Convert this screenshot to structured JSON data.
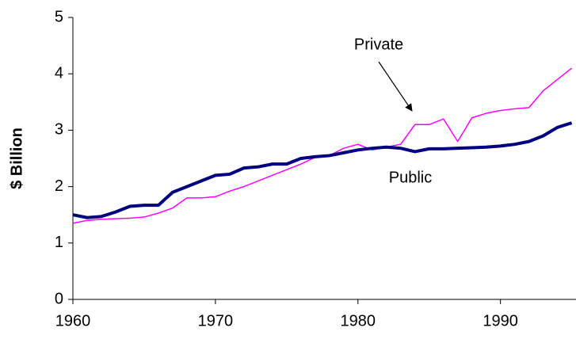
{
  "chart_data": {
    "type": "line",
    "y_label": "$ Billion",
    "x": [
      1960,
      1961,
      1962,
      1963,
      1964,
      1965,
      1966,
      1967,
      1968,
      1969,
      1970,
      1971,
      1972,
      1973,
      1974,
      1975,
      1976,
      1977,
      1978,
      1979,
      1980,
      1981,
      1982,
      1983,
      1984,
      1985,
      1986,
      1987,
      1988,
      1989,
      1990,
      1991,
      1992,
      1993,
      1994,
      1995
    ],
    "series": [
      {
        "name": "Private",
        "color": "#ff00ff",
        "values": [
          1.35,
          1.4,
          1.42,
          1.43,
          1.44,
          1.46,
          1.53,
          1.62,
          1.8,
          1.8,
          1.82,
          1.92,
          2.0,
          2.1,
          2.2,
          2.3,
          2.4,
          2.52,
          2.55,
          2.68,
          2.75,
          2.65,
          2.7,
          2.75,
          3.1,
          3.1,
          3.2,
          2.8,
          3.22,
          3.3,
          3.35,
          3.38,
          3.4,
          3.7,
          3.9,
          4.1
        ]
      },
      {
        "name": "Public",
        "color": "#000080",
        "values": [
          1.5,
          1.45,
          1.47,
          1.55,
          1.65,
          1.67,
          1.67,
          1.9,
          2.0,
          2.1,
          2.2,
          2.22,
          2.33,
          2.35,
          2.4,
          2.4,
          2.5,
          2.53,
          2.55,
          2.6,
          2.65,
          2.68,
          2.7,
          2.68,
          2.62,
          2.67,
          2.67,
          2.68,
          2.69,
          2.7,
          2.72,
          2.75,
          2.8,
          2.9,
          3.05,
          3.13
        ]
      }
    ],
    "annotations": [
      {
        "text": "Private"
      },
      {
        "text": "Public"
      }
    ],
    "xlim": [
      1960,
      1995.3
    ],
    "xticks": [
      1960,
      1970,
      1980,
      1990
    ],
    "ylim": [
      0,
      5
    ],
    "yticks": [
      0,
      1,
      2,
      3,
      4,
      5
    ]
  }
}
